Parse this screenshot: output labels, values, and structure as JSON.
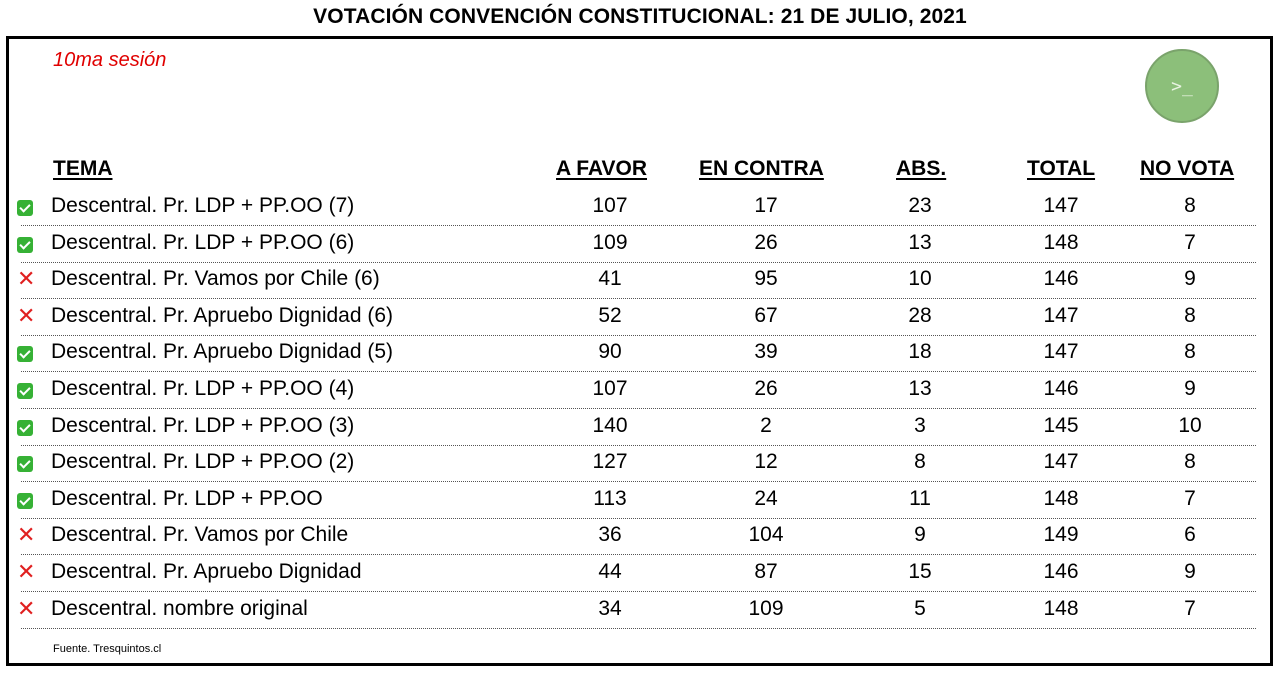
{
  "title": "VOTACIÓN CONVENCIÓN CONSTITUCIONAL: 21 DE JULIO, 2021",
  "session": "10ma sesión",
  "logo": {
    "icon": "terminal-prompt-icon",
    "glyph": ">_",
    "color": "#8cbf7a"
  },
  "headers": {
    "tema": "TEMA",
    "a_favor": "A FAVOR",
    "en_contra": "EN CONTRA",
    "abs": "ABS.",
    "total": "TOTAL",
    "no_vota": "NO VOTA"
  },
  "colors": {
    "approved": "#36b135",
    "rejected": "#e02020",
    "session": "#e00000"
  },
  "rows": [
    {
      "status": "approved",
      "tema": "Descentral. Pr. LDP + PP.OO (7)",
      "a_favor": "107",
      "en_contra": "17",
      "abs": "23",
      "total": "147",
      "no_vota": "8"
    },
    {
      "status": "approved",
      "tema": "Descentral. Pr. LDP + PP.OO (6)",
      "a_favor": "109",
      "en_contra": "26",
      "abs": "13",
      "total": "148",
      "no_vota": "7"
    },
    {
      "status": "rejected",
      "tema": "Descentral. Pr. Vamos por Chile (6)",
      "a_favor": "41",
      "en_contra": "95",
      "abs": "10",
      "total": "146",
      "no_vota": "9"
    },
    {
      "status": "rejected",
      "tema": "Descentral. Pr. Apruebo Dignidad (6)",
      "a_favor": "52",
      "en_contra": "67",
      "abs": "28",
      "total": "147",
      "no_vota": "8"
    },
    {
      "status": "approved",
      "tema": "Descentral. Pr. Apruebo Dignidad (5)",
      "a_favor": "90",
      "en_contra": "39",
      "abs": "18",
      "total": "147",
      "no_vota": "8"
    },
    {
      "status": "approved",
      "tema": "Descentral. Pr. LDP + PP.OO (4)",
      "a_favor": "107",
      "en_contra": "26",
      "abs": "13",
      "total": "146",
      "no_vota": "9"
    },
    {
      "status": "approved",
      "tema": "Descentral. Pr. LDP + PP.OO (3)",
      "a_favor": "140",
      "en_contra": "2",
      "abs": "3",
      "total": "145",
      "no_vota": "10"
    },
    {
      "status": "approved",
      "tema": "Descentral. Pr. LDP + PP.OO (2)",
      "a_favor": "127",
      "en_contra": "12",
      "abs": "8",
      "total": "147",
      "no_vota": "8"
    },
    {
      "status": "approved",
      "tema": "Descentral. Pr. LDP + PP.OO",
      "a_favor": "113",
      "en_contra": "24",
      "abs": "11",
      "total": "148",
      "no_vota": "7"
    },
    {
      "status": "rejected",
      "tema": "Descentral. Pr. Vamos por Chile",
      "a_favor": "36",
      "en_contra": "104",
      "abs": "9",
      "total": "149",
      "no_vota": "6"
    },
    {
      "status": "rejected",
      "tema": "Descentral. Pr. Apruebo Dignidad",
      "a_favor": "44",
      "en_contra": "87",
      "abs": "15",
      "total": "146",
      "no_vota": "9"
    },
    {
      "status": "rejected",
      "tema": "Descentral. nombre original",
      "a_favor": "34",
      "en_contra": "109",
      "abs": "5",
      "total": "148",
      "no_vota": "7"
    }
  ],
  "source": "Fuente. Tresquintos.cl"
}
